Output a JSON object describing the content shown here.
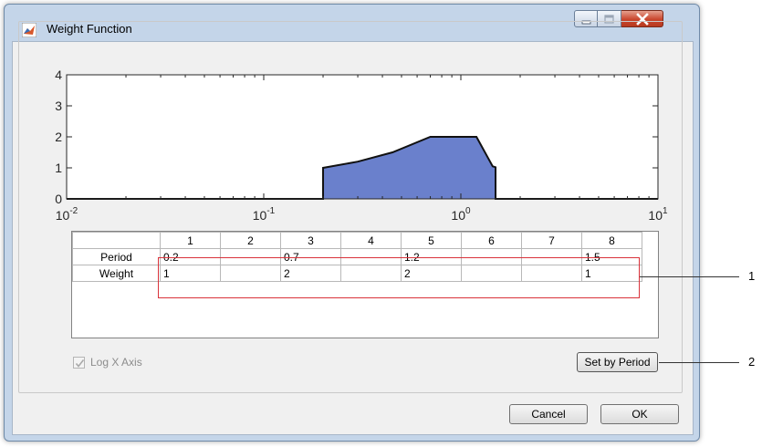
{
  "window": {
    "title": "Weight Function",
    "icon": "matlab-icon",
    "controls": {
      "minimize_icon": "minimize-icon",
      "maximize_icon": "maximize-icon",
      "close_icon": "close-icon"
    }
  },
  "chart_data": {
    "type": "area",
    "x_scale": "log",
    "xlim": [
      0.01,
      10
    ],
    "ylim": [
      0,
      4
    ],
    "x_ticks": [
      0.01,
      0.1,
      1,
      10
    ],
    "x_tick_labels": [
      {
        "base": "10",
        "exp": "-2"
      },
      {
        "base": "10",
        "exp": "-1"
      },
      {
        "base": "10",
        "exp": "0"
      },
      {
        "base": "10",
        "exp": "1"
      }
    ],
    "y_ticks": [
      0,
      1,
      2,
      3,
      4
    ],
    "y_tick_labels": [
      "0",
      "1",
      "2",
      "3",
      "4"
    ],
    "grid": false,
    "fill_color": "#6a80cc",
    "series": [
      {
        "x": [
          0.01,
          0.2,
          0.2,
          0.3,
          0.45,
          0.7,
          1.2,
          1.45,
          1.5,
          1.5,
          10
        ],
        "y": [
          0,
          0,
          1,
          1.2,
          1.5,
          2,
          2,
          1.05,
          1.02,
          0,
          0
        ]
      }
    ]
  },
  "table": {
    "column_headers": [
      "1",
      "2",
      "3",
      "4",
      "5",
      "6",
      "7",
      "8"
    ],
    "rows": [
      {
        "label": "Period",
        "cells": [
          "0.2",
          "",
          "0.7",
          "",
          "1.2",
          "",
          "",
          "1.5"
        ]
      },
      {
        "label": "Weight",
        "cells": [
          "1",
          "",
          "2",
          "",
          "2",
          "",
          "",
          "1"
        ]
      }
    ]
  },
  "callouts": {
    "one": "1",
    "two": "2"
  },
  "log_x_axis": {
    "label": "Log X Axis",
    "checked": true,
    "enabled": false
  },
  "buttons": {
    "set_by_period": "Set by Period",
    "cancel": "Cancel",
    "ok": "OK"
  }
}
